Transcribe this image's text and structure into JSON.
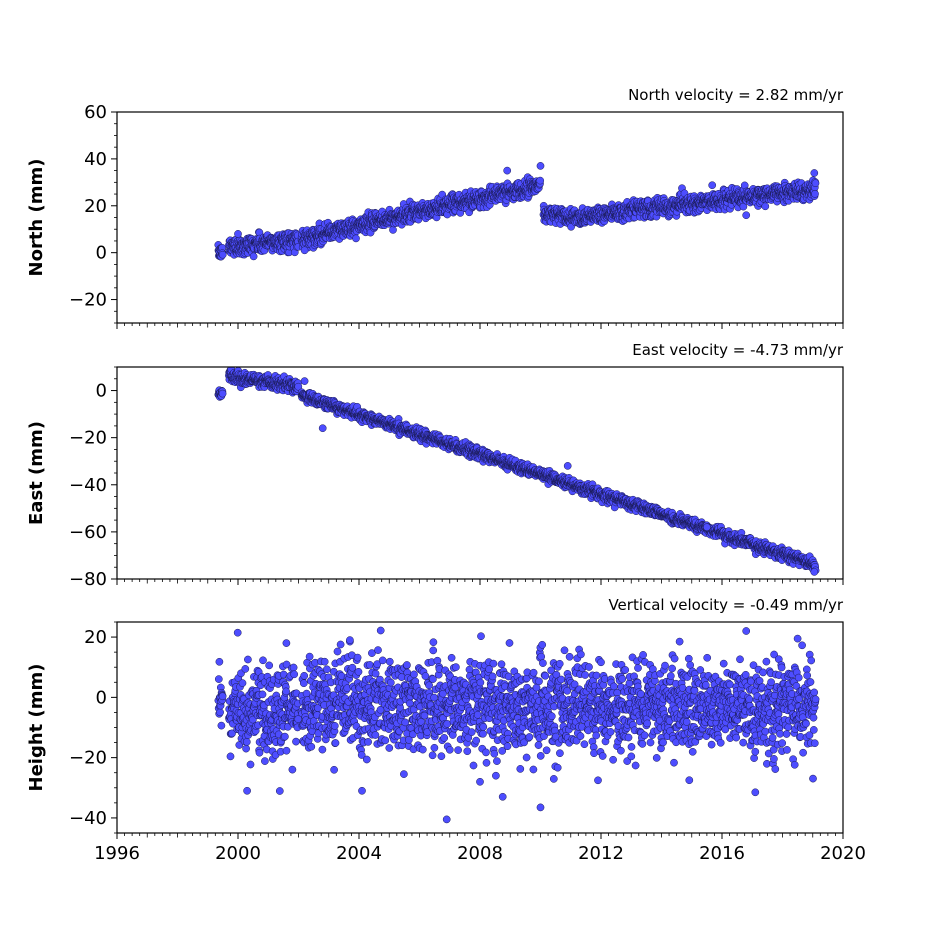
{
  "chart_data": {
    "type": "scatter",
    "marker_color": "#4d4dff",
    "marker_edge_color": "#1a1a55",
    "shared_x": {
      "range": [
        1996,
        2020
      ],
      "ticks": [
        1996,
        2000,
        2004,
        2008,
        2012,
        2016,
        2020
      ],
      "tick_labels": [
        "1996",
        "2000",
        "2004",
        "2008",
        "2012",
        "2016",
        "2020"
      ],
      "minor_tick_step_years": 0.25
    },
    "grid": false,
    "panels": [
      {
        "title": "North velocity = 2.82 mm/yr",
        "ylabel": "North (mm)",
        "ylim": [
          -30,
          60
        ],
        "yticks": [
          -20,
          0,
          20,
          40,
          60
        ],
        "ytick_labels": [
          "−20",
          "0",
          "20",
          "40",
          "60"
        ],
        "trend_segments": [
          {
            "x": [
              1999.35,
              1999.5
            ],
            "y": [
              0,
              0
            ],
            "noise": 1.2
          },
          {
            "x": [
              1999.7,
              2002.0
            ],
            "y": [
              2.5,
              5.5
            ],
            "noise": 2.0
          },
          {
            "x": [
              2002.1,
              2010.0
            ],
            "y": [
              6,
              29
            ],
            "noise": 1.8
          },
          {
            "x": [
              2010.1,
              2011.0
            ],
            "y": [
              17,
              15
            ],
            "noise": 1.8
          },
          {
            "x": [
              2011.0,
              2019.1
            ],
            "y": [
              15,
              27
            ],
            "noise": 1.8
          }
        ],
        "outliers": [
          {
            "x": 2008.9,
            "y": 35
          },
          {
            "x": 2010.0,
            "y": 37
          },
          {
            "x": 2019.05,
            "y": 34
          },
          {
            "x": 2002.2,
            "y": 1
          },
          {
            "x": 2016.8,
            "y": 16
          },
          {
            "x": 2000.0,
            "y": 8
          }
        ]
      },
      {
        "title": "East velocity = -4.73 mm/yr",
        "ylabel": "East (mm)",
        "ylim": [
          -80,
          10
        ],
        "yticks": [
          -80,
          -60,
          -40,
          -20,
          0
        ],
        "ytick_labels": [
          "−80",
          "−60",
          "−40",
          "−20",
          "0"
        ],
        "trend_segments": [
          {
            "x": [
              1999.35,
              1999.5
            ],
            "y": [
              -1,
              -1.5
            ],
            "noise": 1.0
          },
          {
            "x": [
              1999.7,
              2002.0
            ],
            "y": [
              6,
              1.5
            ],
            "noise": 1.3
          },
          {
            "x": [
              2002.1,
              2019.1
            ],
            "y": [
              -2,
              -74
            ],
            "noise": 1.1
          }
        ],
        "outliers": [
          {
            "x": 2002.8,
            "y": -16
          },
          {
            "x": 2002.2,
            "y": 4
          },
          {
            "x": 2010.9,
            "y": -32
          },
          {
            "x": 2019.05,
            "y": -77
          },
          {
            "x": 2015.5,
            "y": -58
          }
        ]
      },
      {
        "title": "Vertical velocity = -0.49 mm/yr",
        "ylabel": "Height (mm)",
        "ylim": [
          -45,
          25
        ],
        "yticks": [
          -40,
          -20,
          0,
          20
        ],
        "ytick_labels": [
          "−40",
          "−20",
          "0",
          "20"
        ],
        "trend_segments": [
          {
            "x": [
              1999.35,
              1999.5
            ],
            "y": [
              0,
              0
            ],
            "noise": 4.5
          },
          {
            "x": [
              1999.7,
              2002.0
            ],
            "y": [
              -4,
              -4
            ],
            "noise": 7.5
          },
          {
            "x": [
              2002.1,
              2019.1
            ],
            "y": [
              -2,
              -4
            ],
            "noise": 7.5
          }
        ],
        "outliers": [
          {
            "x": 2006.9,
            "y": -40.5
          },
          {
            "x": 2016.8,
            "y": 22
          },
          {
            "x": 2010.0,
            "y": -36.5
          },
          {
            "x": 2008.75,
            "y": -33
          },
          {
            "x": 2004.1,
            "y": -31
          },
          {
            "x": 2000.3,
            "y": -31
          },
          {
            "x": 2017.1,
            "y": -31.5
          },
          {
            "x": 2003.7,
            "y": 19
          },
          {
            "x": 2018.5,
            "y": 19.5
          },
          {
            "x": 2014.6,
            "y": 18.5
          },
          {
            "x": 2001.6,
            "y": 18
          },
          {
            "x": 2008.0,
            "y": -28
          },
          {
            "x": 2011.9,
            "y": -27.5
          }
        ]
      }
    ]
  }
}
